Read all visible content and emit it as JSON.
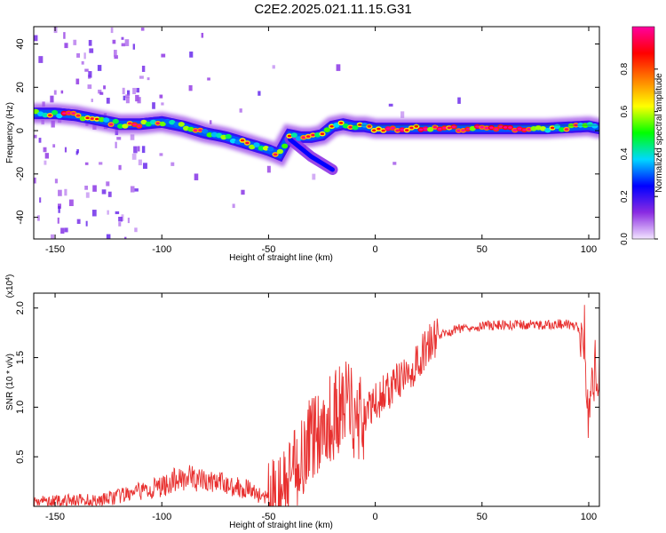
{
  "title": "C2E2.2025.021.11.15.G31",
  "chart_data": [
    {
      "type": "heatmap",
      "xlabel": "Height of straight line (km)",
      "ylabel": "Frequency (Hz)",
      "xlim": [
        -160,
        105
      ],
      "ylim": [
        -50,
        48
      ],
      "xticks": [
        -150,
        -100,
        -50,
        0,
        50,
        100
      ],
      "yticks": [
        -40,
        -20,
        0,
        20,
        40
      ],
      "colorbar": {
        "label": "Normalized spectral amplitude",
        "range": [
          0,
          1
        ],
        "ticks": [
          0.0,
          0.2,
          0.4,
          0.6,
          0.8
        ],
        "colors": [
          "#f3e5ff",
          "#8a2be2",
          "#0000ff",
          "#00d8ff",
          "#00ff00",
          "#ffff00",
          "#ff8000",
          "#ff0000",
          "#ff00a0"
        ]
      },
      "ridge": {
        "x": [
          -160,
          -150,
          -140,
          -130,
          -120,
          -110,
          -100,
          -90,
          -80,
          -70,
          -60,
          -50,
          -45,
          -40,
          -35,
          -30,
          -25,
          -20,
          -15,
          -10,
          -5,
          0,
          20,
          40,
          60,
          80,
          100,
          105
        ],
        "y": [
          8,
          8,
          7,
          5,
          3,
          3,
          4,
          2,
          -1,
          -3,
          -6,
          -9,
          -11,
          -2,
          -3,
          -3,
          -2,
          2,
          3,
          2,
          2,
          1,
          1,
          1,
          1,
          1,
          2,
          1
        ]
      },
      "secondary_ridge": {
        "x": [
          -40,
          -35,
          -30,
          -25,
          -20
        ],
        "y": [
          -4,
          -8,
          -12,
          -15,
          -18
        ]
      }
    },
    {
      "type": "line",
      "xlabel": "Height of straight line (km)",
      "ylabel": "SNR (10 * v/v)",
      "scale_label": "(x10",
      "scale_exponent": "4",
      "xlim": [
        -160,
        105
      ],
      "ylim": [
        0,
        2.15
      ],
      "xticks": [
        -150,
        -100,
        -50,
        0,
        50,
        100
      ],
      "yticks": [
        0.5,
        1.0,
        1.5,
        2.0
      ],
      "ytick_labels": [
        "0.5",
        "1.0",
        "1.5",
        "2.0"
      ],
      "line_color": "#e8302f",
      "series": [
        {
          "x": [
            -160,
            -150,
            -140,
            -130,
            -120,
            -110,
            -100,
            -95,
            -90,
            -85,
            -80,
            -75,
            -70,
            -65,
            -60,
            -55,
            -50,
            -45,
            -40,
            -35,
            -30,
            -25,
            -20,
            -15,
            -12,
            -10,
            -5,
            0,
            5,
            10,
            15,
            20,
            25,
            30,
            40,
            50,
            60,
            70,
            80,
            90,
            95,
            98,
            100,
            102,
            105
          ],
          "y": [
            0.05,
            0.05,
            0.06,
            0.06,
            0.1,
            0.15,
            0.2,
            0.25,
            0.3,
            0.28,
            0.25,
            0.25,
            0.22,
            0.2,
            0.18,
            0.12,
            0.07,
            0.1,
            0.25,
            0.5,
            0.7,
            0.8,
            0.9,
            1.0,
            1.1,
            0.9,
            0.9,
            1.05,
            1.15,
            1.25,
            1.3,
            1.45,
            1.65,
            1.72,
            1.8,
            1.82,
            1.83,
            1.83,
            1.83,
            1.84,
            1.8,
            1.78,
            0.75,
            1.4,
            1.38
          ]
        }
      ]
    }
  ]
}
